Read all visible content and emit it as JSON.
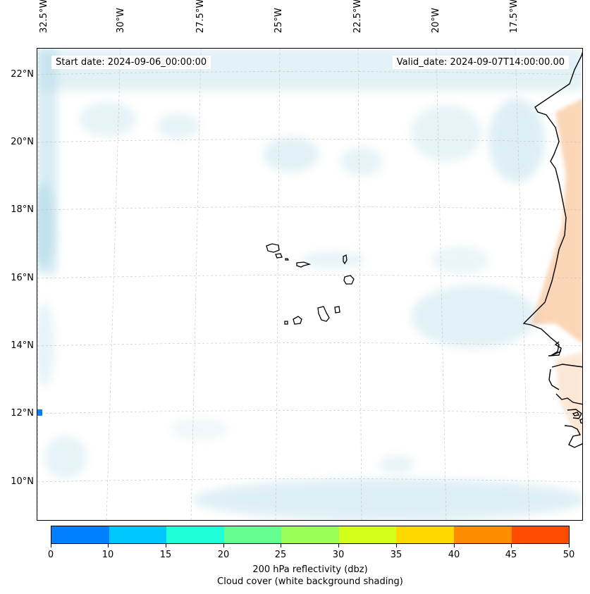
{
  "map": {
    "start_date": "Start date: 2024-09-06_00:00:00",
    "valid_date": "Valid_date: 2024-09-07T14:00:00.00",
    "lon_labels": [
      "32.5°W",
      "30°W",
      "27.5°W",
      "25°W",
      "22.5°W",
      "20°W",
      "17.5°W"
    ],
    "lat_labels": [
      "22°N",
      "20°N",
      "18°N",
      "16°N",
      "14°N",
      "12°N",
      "10°N"
    ],
    "colors": {
      "cloud": "#add8e6",
      "land_shading": "#f4a460",
      "coast": "#000000",
      "grid": "#b0b0b0",
      "marker": "#0080ff"
    }
  },
  "colorbar": {
    "ticks": [
      "0",
      "10",
      "15",
      "20",
      "25",
      "30",
      "35",
      "40",
      "45",
      "50"
    ],
    "colors": [
      "#0080ff",
      "#00c8ff",
      "#1effd8",
      "#64ff90",
      "#9aff58",
      "#d4ff1a",
      "#ffd800",
      "#ff8c00",
      "#ff4c00"
    ],
    "label_line1": "200 hPa reflectivity (dbz)",
    "label_line2": "Cloud cover (white background shading)"
  }
}
